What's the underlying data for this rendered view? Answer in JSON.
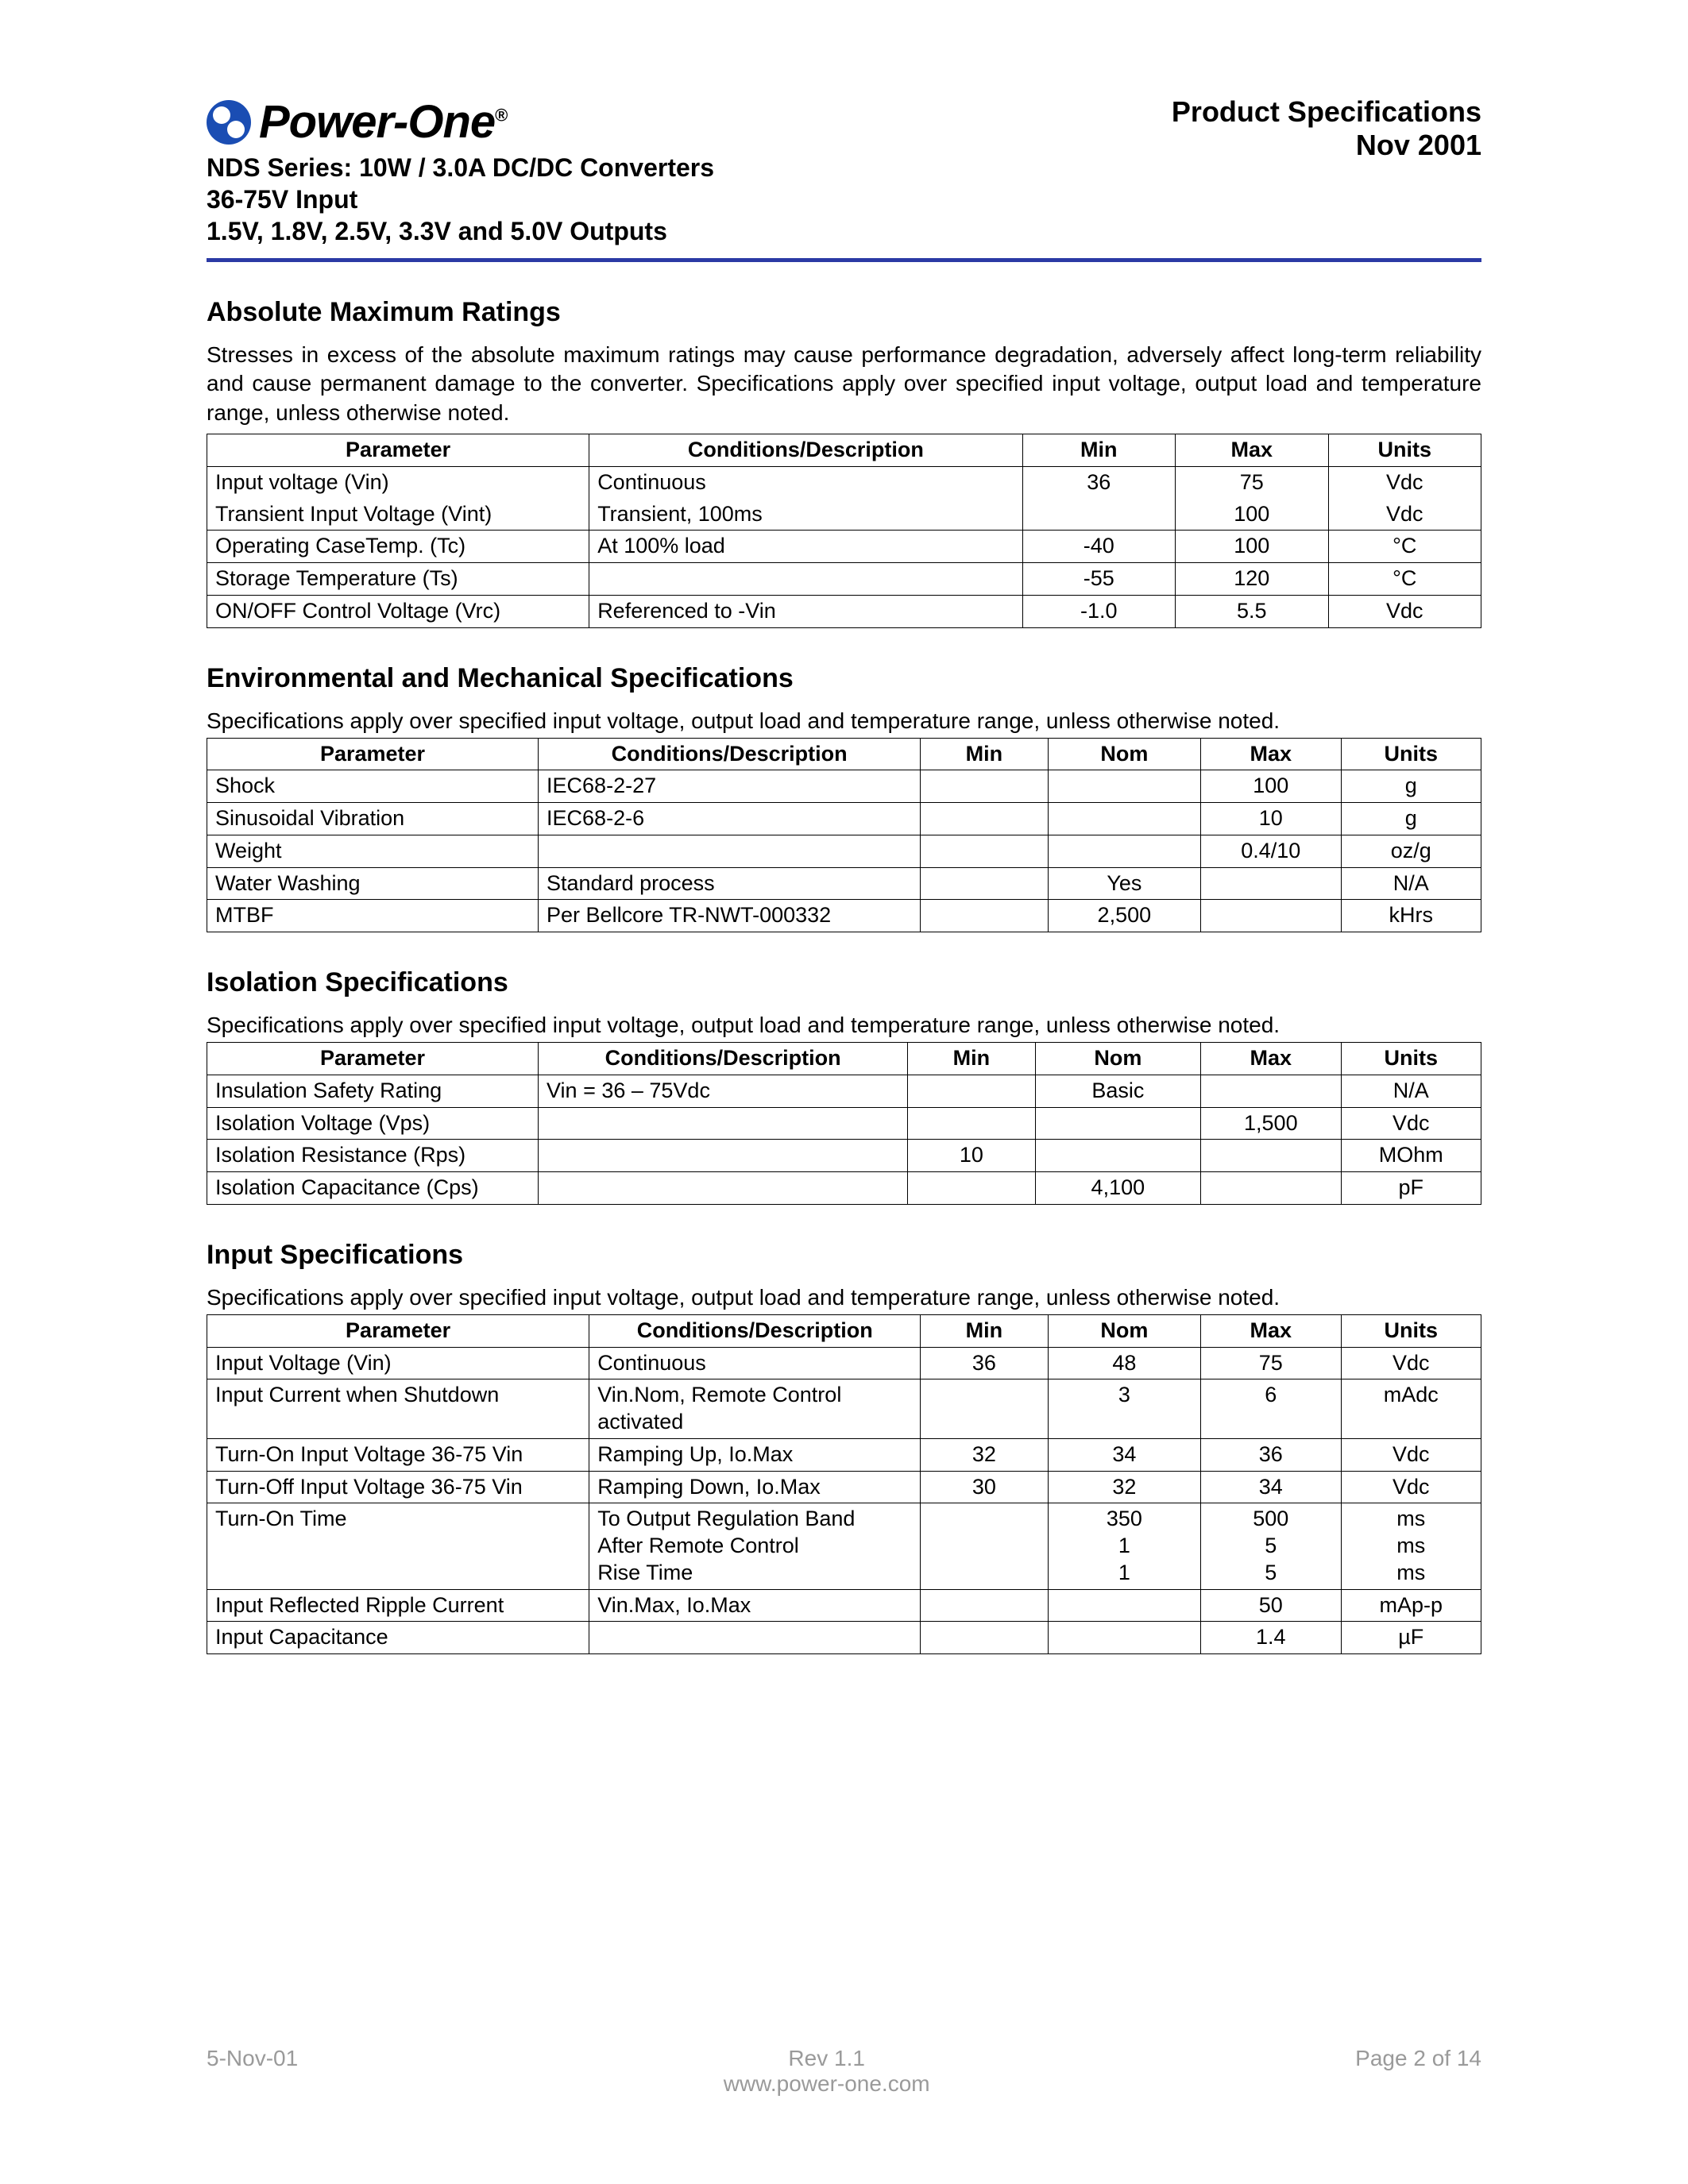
{
  "brand": {
    "name": "Power-One",
    "reg": "®"
  },
  "doc_meta": {
    "title": "Product Specifications",
    "date": "Nov 2001"
  },
  "product": {
    "line1": "NDS Series: 10W / 3.0A DC/DC Converters",
    "line2": "36-75V Input",
    "line3": "1.5V, 1.8V, 2.5V, 3.3V and 5.0V Outputs"
  },
  "hr_color": "#2b3aa5",
  "sections": {
    "abs": {
      "heading": "Absolute Maximum Ratings",
      "note": "Stresses in excess of the absolute maximum ratings may cause performance degradation, adversely affect long-term reliability and cause permanent damage to the converter.  Specifications apply over specified input voltage, output load and temperature range, unless otherwise noted.",
      "columns": [
        "Parameter",
        "Conditions/Description",
        "Min",
        "Max",
        "Units"
      ],
      "rows": [
        [
          "Input voltage (Vin)",
          "Continuous",
          "36",
          "75",
          "Vdc"
        ],
        [
          "Transient Input Voltage (Vint)",
          "Transient, 100ms",
          "",
          "100",
          "Vdc"
        ],
        [
          "Operating CaseTemp. (Tc)",
          "At 100% load",
          "-40",
          "100",
          "°C"
        ],
        [
          "Storage Temperature (Ts)",
          "",
          "-55",
          "120",
          "°C"
        ],
        [
          "ON/OFF Control Voltage (Vrc)",
          "Referenced to -Vin",
          "-1.0",
          "5.5",
          "Vdc"
        ]
      ]
    },
    "env": {
      "heading": "Environmental and Mechanical Specifications",
      "subnote": "Specifications apply over specified input voltage, output load and temperature range, unless otherwise noted.",
      "columns": [
        "Parameter",
        "Conditions/Description",
        "Min",
        "Nom",
        "Max",
        "Units"
      ],
      "rows": [
        [
          "Shock",
          "IEC68-2-27",
          "",
          "",
          "100",
          "g"
        ],
        [
          "Sinusoidal Vibration",
          "IEC68-2-6",
          "",
          "",
          "10",
          "g"
        ],
        [
          "Weight",
          "",
          "",
          "",
          "0.4/10",
          "oz/g"
        ],
        [
          "Water Washing",
          "Standard process",
          "",
          "Yes",
          "",
          "N/A"
        ],
        [
          "MTBF",
          "Per Bellcore TR-NWT-000332",
          "",
          "2,500",
          "",
          "kHrs"
        ]
      ]
    },
    "iso": {
      "heading": "Isolation Specifications",
      "subnote": "Specifications apply over specified input voltage, output load and temperature range, unless otherwise noted.",
      "columns": [
        "Parameter",
        "Conditions/Description",
        "Min",
        "Nom",
        "Max",
        "Units"
      ],
      "rows": [
        [
          "Insulation Safety Rating",
          "Vin = 36 – 75Vdc",
          "",
          "Basic",
          "",
          "N/A"
        ],
        [
          "Isolation Voltage (Vps)",
          "",
          "",
          "",
          "1,500",
          "Vdc"
        ],
        [
          "Isolation Resistance (Rps)",
          "",
          "10",
          "",
          "",
          "MOhm"
        ],
        [
          "Isolation Capacitance (Cps)",
          "",
          "",
          "4,100",
          "",
          "pF"
        ]
      ]
    },
    "input": {
      "heading": "Input Specifications",
      "subnote": "Specifications apply over specified input voltage, output load and temperature range, unless otherwise noted.",
      "columns": [
        "Parameter",
        "Conditions/Description",
        "Min",
        "Nom",
        "Max",
        "Units"
      ],
      "rows": [
        [
          "Input Voltage (Vin)",
          "Continuous",
          "36",
          "48",
          "75",
          "Vdc"
        ],
        [
          "Input Current when Shutdown",
          "Vin.Nom, Remote Control activated",
          "",
          "3",
          "6",
          "mAdc"
        ],
        [
          "Turn-On Input Voltage 36-75 Vin",
          "Ramping Up, Io.Max",
          "32",
          "34",
          "36",
          "Vdc"
        ],
        [
          "Turn-Off Input Voltage 36-75 Vin",
          "Ramping Down, Io.Max",
          "30",
          "32",
          "34",
          "Vdc"
        ],
        [
          "Turn-On Time",
          "To Output Regulation Band\nAfter Remote Control\nRise Time",
          "",
          "350\n1\n1",
          "500\n5\n5",
          "ms\nms\nms"
        ],
        [
          "Input Reflected Ripple Current",
          "Vin.Max, Io.Max",
          "",
          "",
          "50",
          "mAp-p"
        ],
        [
          "Input Capacitance",
          "",
          "",
          "",
          "1.4",
          "µF"
        ]
      ]
    }
  },
  "footer": {
    "left": "5-Nov-01",
    "mid_top": "Rev 1.1",
    "mid_bottom": "www.power-one.com",
    "right": "Page 2 of 14"
  },
  "style": {
    "body_bg": "#ffffff",
    "text_color": "#000000",
    "footer_color": "#9a9a9a",
    "table_border": "#000000",
    "heading_fontsize": 34,
    "body_fontsize": 28,
    "table_fontsize": 27
  }
}
